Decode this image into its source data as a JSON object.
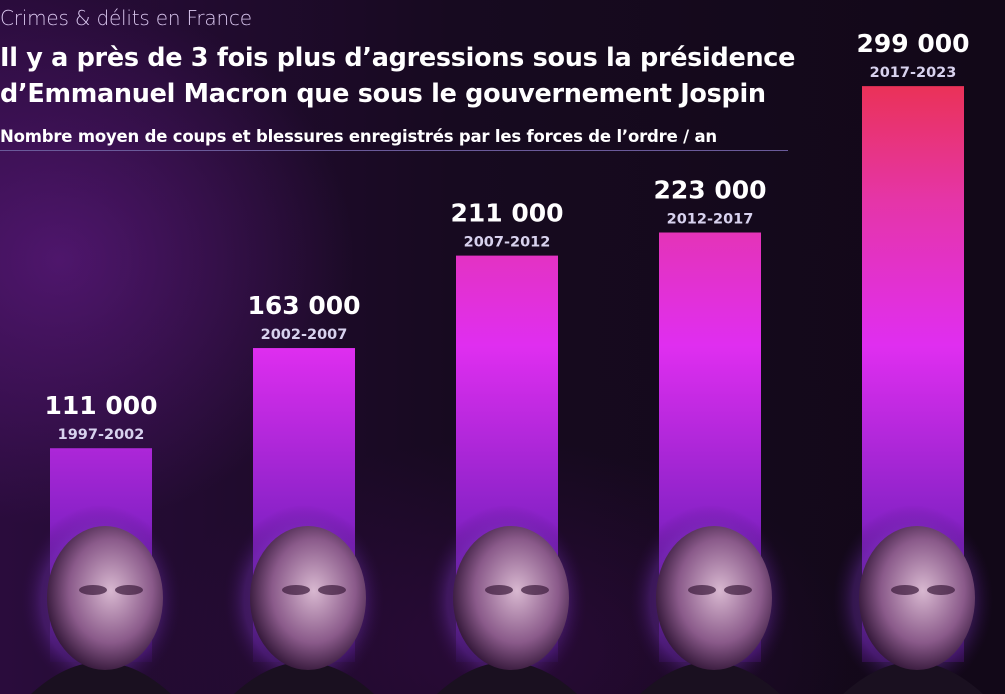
{
  "header": {
    "kicker": "Crimes & délits en France",
    "title_line1": "Il y a près de 3 fois plus d’agressions sous la présidence",
    "title_line2": "d’Emmanuel Macron que sous le gouvernement Jospin",
    "subtitle": "Nombre moyen de coups et blessures enregistrés par les forces de l’ordre / an"
  },
  "chart_data": {
    "type": "bar",
    "title": "Il y a près de 3 fois plus d’agressions sous la présidence d’Emmanuel Macron que sous le gouvernement Jospin",
    "subtitle": "Nombre moyen de coups et blessures enregistrés par les forces de l’ordre / an",
    "categories": [
      "1997-2002",
      "2002-2007",
      "2007-2012",
      "2012-2017",
      "2017-2023"
    ],
    "values": [
      111000,
      163000,
      211000,
      223000,
      299000
    ],
    "value_labels": [
      "111 000",
      "163 000",
      "211 000",
      "223 000",
      "299 000"
    ],
    "xlabel": "",
    "ylabel": "",
    "grid": false,
    "colors": {
      "bottom": "#6a1aa8",
      "middle": "#e02ef0",
      "top": "#ea2f5a"
    }
  }
}
